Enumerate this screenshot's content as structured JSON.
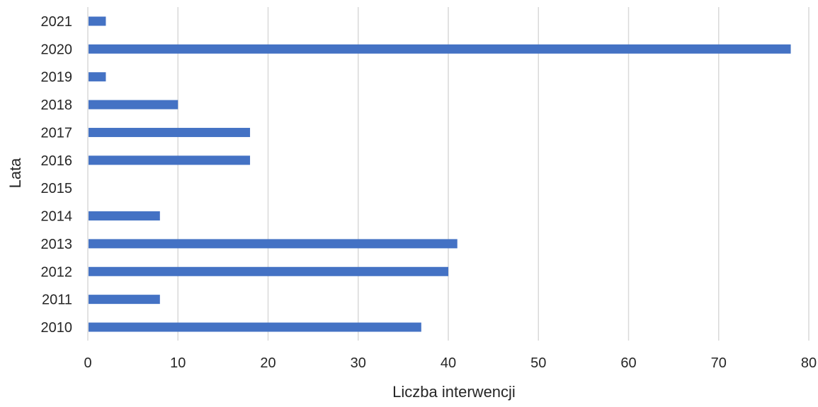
{
  "chart_data": {
    "type": "bar",
    "orientation": "horizontal",
    "categories": [
      "2010",
      "2011",
      "2012",
      "2013",
      "2014",
      "2015",
      "2016",
      "2017",
      "2018",
      "2019",
      "2020",
      "2021"
    ],
    "series": [
      {
        "values": [
          37,
          8,
          40,
          41,
          8,
          0,
          18,
          18,
          10,
          2,
          78,
          2
        ]
      }
    ],
    "xlabel": "Liczba interwencji",
    "ylabel": "Lata",
    "xlim": [
      0,
      80
    ],
    "xticks": [
      "0",
      "10",
      "20",
      "30",
      "40",
      "50",
      "60",
      "70",
      "80"
    ],
    "grid": "vertical",
    "legend": "none",
    "bar_color": "#4472C4",
    "grid_color": "#D9D9D9",
    "text_color": "#262626"
  }
}
